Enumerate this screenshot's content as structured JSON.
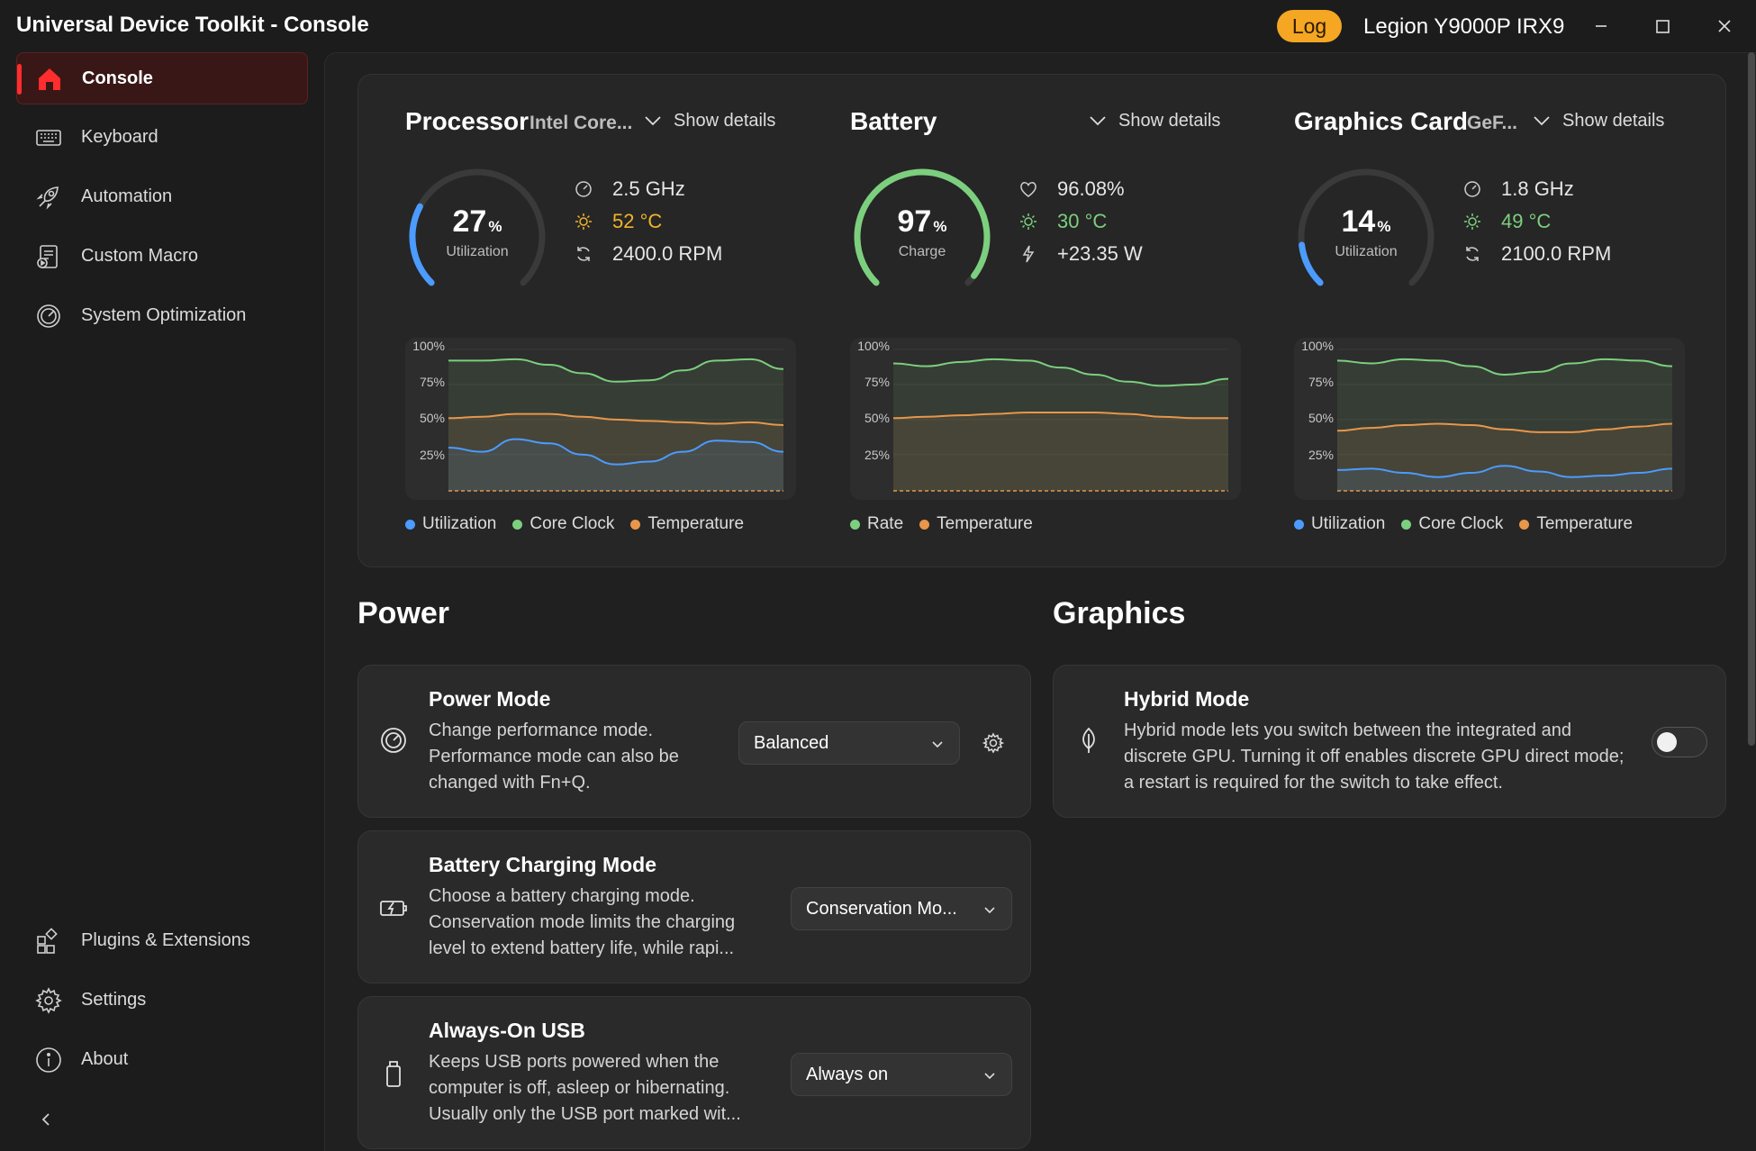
{
  "window": {
    "title": "Universal Device Toolkit - Console",
    "log_label": "Log",
    "device": "Legion Y9000P IRX9",
    "minimize_icon": "minimize-icon",
    "maximize_icon": "maximize-icon",
    "close_icon": "close-icon"
  },
  "sidebar": {
    "items": [
      {
        "label": "Console",
        "icon": "home-icon",
        "active": true
      },
      {
        "label": "Keyboard",
        "icon": "keyboard-icon"
      },
      {
        "label": "Automation",
        "icon": "rocket-icon"
      },
      {
        "label": "Custom Macro",
        "icon": "macro-icon"
      },
      {
        "label": "System Optimization",
        "icon": "speedometer-icon"
      }
    ],
    "bottom_items": [
      {
        "label": "Plugins & Extensions",
        "icon": "plugins-icon"
      },
      {
        "label": "Settings",
        "icon": "gear-icon"
      },
      {
        "label": "About",
        "icon": "info-icon"
      }
    ],
    "collapse_icon": "chevron-left-icon"
  },
  "monitor": {
    "show_details_label": "Show details",
    "y_ticks": [
      "100%",
      "75%",
      "50%",
      "25%"
    ],
    "processor": {
      "title": "Processor",
      "subtitle": "Intel Core...",
      "gauge_value": "27",
      "gauge_unit": "%",
      "gauge_label": "Utilization",
      "gauge_fraction": 0.27,
      "clock": "2.5 GHz",
      "temperature": "52 °C",
      "fan": "2400.0 RPM",
      "legend": [
        "Utilization",
        "Core Clock",
        "Temperature"
      ]
    },
    "battery": {
      "title": "Battery",
      "subtitle": "",
      "gauge_value": "97",
      "gauge_unit": "%",
      "gauge_label": "Charge",
      "gauge_fraction": 0.97,
      "health": "96.08%",
      "temperature": "30 °C",
      "power": "+23.35 W",
      "legend": [
        "Rate",
        "Temperature"
      ]
    },
    "gpu": {
      "title": "Graphics Card",
      "subtitle": "GeF...",
      "gauge_value": "14",
      "gauge_unit": "%",
      "gauge_label": "Utilization",
      "gauge_fraction": 0.14,
      "clock": "1.8 GHz",
      "temperature": "49 °C",
      "fan": "2100.0 RPM",
      "legend": [
        "Utilization",
        "Core Clock",
        "Temperature"
      ]
    }
  },
  "colors": {
    "blue": "#4c9bff",
    "green": "#7ccf7e",
    "orange": "#e8964a",
    "cpu_temp": "#f0b429",
    "gpu_temp": "#7ccf7e",
    "accent_red": "#ff2d2d"
  },
  "sections": {
    "power": "Power",
    "graphics": "Graphics"
  },
  "cards": {
    "power_mode": {
      "title": "Power Mode",
      "desc": "Change performance mode. Performance mode can also be changed with Fn+Q.",
      "value": "Balanced"
    },
    "battery_charging": {
      "title": "Battery Charging Mode",
      "desc": "Choose a battery charging mode. Conservation mode limits the charging level to extend battery life, while rapi...",
      "value": "Conservation Mo..."
    },
    "always_on_usb": {
      "title": "Always-On USB",
      "desc": "Keeps USB ports powered when the computer is off, asleep or hibernating. Usually only the USB port marked wit...",
      "value": "Always on"
    },
    "hybrid_mode": {
      "title": "Hybrid Mode",
      "desc": "Hybrid mode lets you switch between the integrated and discrete GPU. Turning it off enables discrete GPU direct mode; a restart is required for the switch to take effect.",
      "enabled": false
    }
  }
}
